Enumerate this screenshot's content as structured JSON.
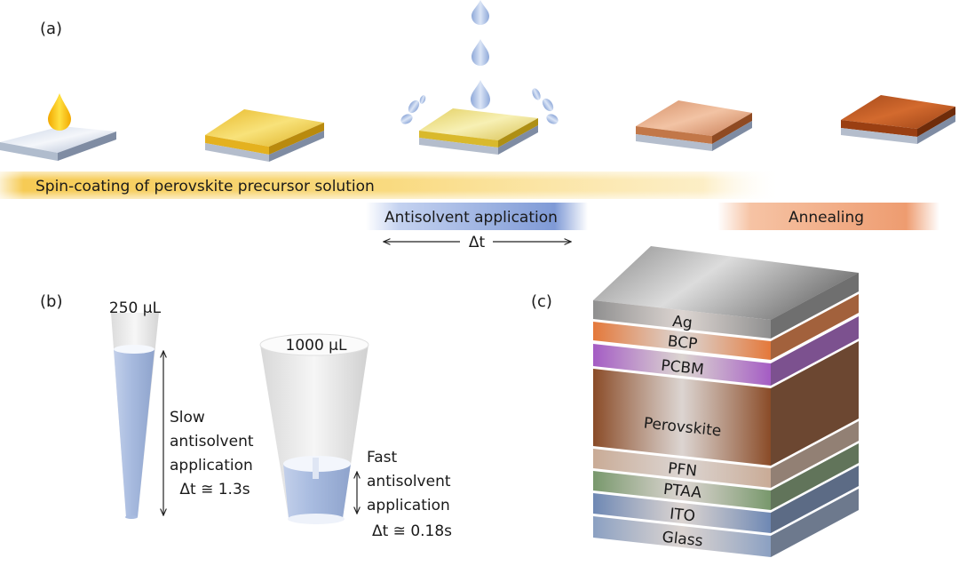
{
  "panels": {
    "a": {
      "label": "(a)",
      "bar_spin": "Spin-coating of perovskite precursor solution",
      "bar_antisolvent": "Antisolvent application",
      "bar_annealing": "Annealing",
      "delta_t": "Δt"
    },
    "b": {
      "label": "(b)",
      "small_pipette": "250 μL",
      "large_pipette": "1000 μL",
      "slow_lines": [
        "Slow",
        "antisolvent",
        "application",
        "Δt ≅ 1.3s"
      ],
      "fast_lines": [
        "Fast",
        "antisolvent",
        "application",
        "Δt ≅ 0.18s"
      ]
    },
    "c": {
      "label": "(c)",
      "layers": [
        {
          "name": "Ag",
          "color": "#8f8f8f"
        },
        {
          "name": "BCP",
          "color": "#e4783a"
        },
        {
          "name": "PCBM",
          "color": "#a45cc4"
        },
        {
          "name": "Perovskite",
          "color": "#8a4b27"
        },
        {
          "name": "PFN",
          "color": "#c9ab96"
        },
        {
          "name": "PTAA",
          "color": "#78986c"
        },
        {
          "name": "ITO",
          "color": "#6e88b4"
        },
        {
          "name": "Glass",
          "color": "#8ba0c2"
        }
      ]
    }
  },
  "colors": {
    "spin_bar": "#f5c542",
    "antisolvent_bar": "#7f9ad6",
    "annealing_bar": "#ee9c70",
    "precursor_drop": "#f2b800",
    "antisolvent_drop": "#a9c0e6"
  }
}
